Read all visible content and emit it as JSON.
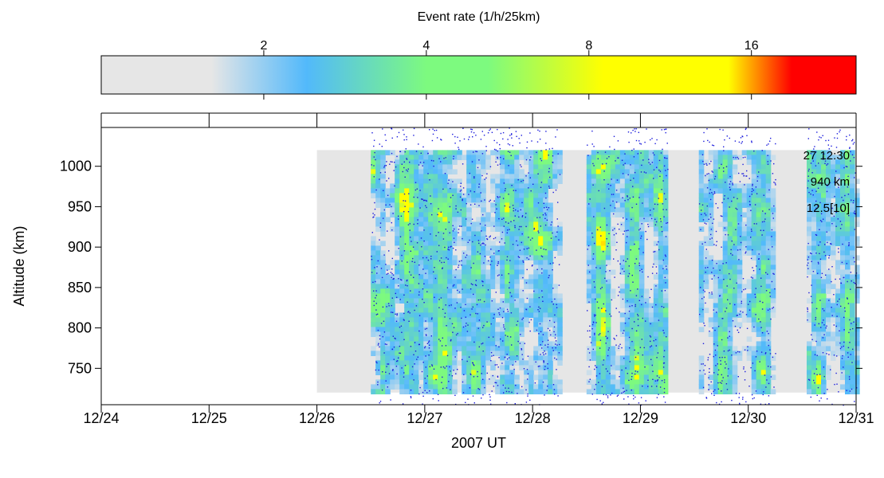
{
  "chart_data": {
    "type": "heatmap",
    "title": "",
    "xlabel": "2007 UT",
    "ylabel": "Altitude (km)",
    "x_ticks": [
      "12/24",
      "12/25",
      "12/26",
      "12/27",
      "12/28",
      "12/29",
      "12/30",
      "12/31"
    ],
    "x_range": [
      "2007-12-24",
      "2007-12-31"
    ],
    "y_ticks": [
      750,
      800,
      850,
      900,
      950,
      1000
    ],
    "y_range": [
      705,
      1048
    ],
    "data_altitude_range": [
      720,
      1020
    ],
    "data_time_range": [
      "2007-12-26 00:00",
      "2007-12-31 00:00"
    ],
    "colorbar": {
      "label": "Event rate (1/h/25km)",
      "ticks": [
        2,
        4,
        8,
        16
      ],
      "range": [
        1,
        25
      ],
      "scale": "log",
      "colors": [
        {
          "value": 1,
          "color": "#e6e6e6"
        },
        {
          "value": 1.6,
          "color": "#e6e6e6"
        },
        {
          "value": 2.4,
          "color": "#52b9fb"
        },
        {
          "value": 4.0,
          "color": "#7dfa7f"
        },
        {
          "value": 5.2,
          "color": "#7dfa7f"
        },
        {
          "value": 8.5,
          "color": "#ffff00"
        },
        {
          "value": 14.5,
          "color": "#ffff00"
        },
        {
          "value": 19,
          "color": "#ff0000"
        },
        {
          "value": 25,
          "color": "#ff0000"
        }
      ]
    },
    "annotations": [
      "27 12:30",
      "940 km",
      "12.5[10]"
    ],
    "observation_blocks": [
      {
        "start": "2007-12-26 12:00",
        "end": "2007-12-28 06:00"
      },
      {
        "start": "2007-12-28 12:00",
        "end": "2007-12-29 06:00"
      },
      {
        "start": "2007-12-29 13:00",
        "end": "2007-12-30 06:00"
      },
      {
        "start": "2007-12-30 13:00",
        "end": "2007-12-31 00:00"
      }
    ]
  }
}
